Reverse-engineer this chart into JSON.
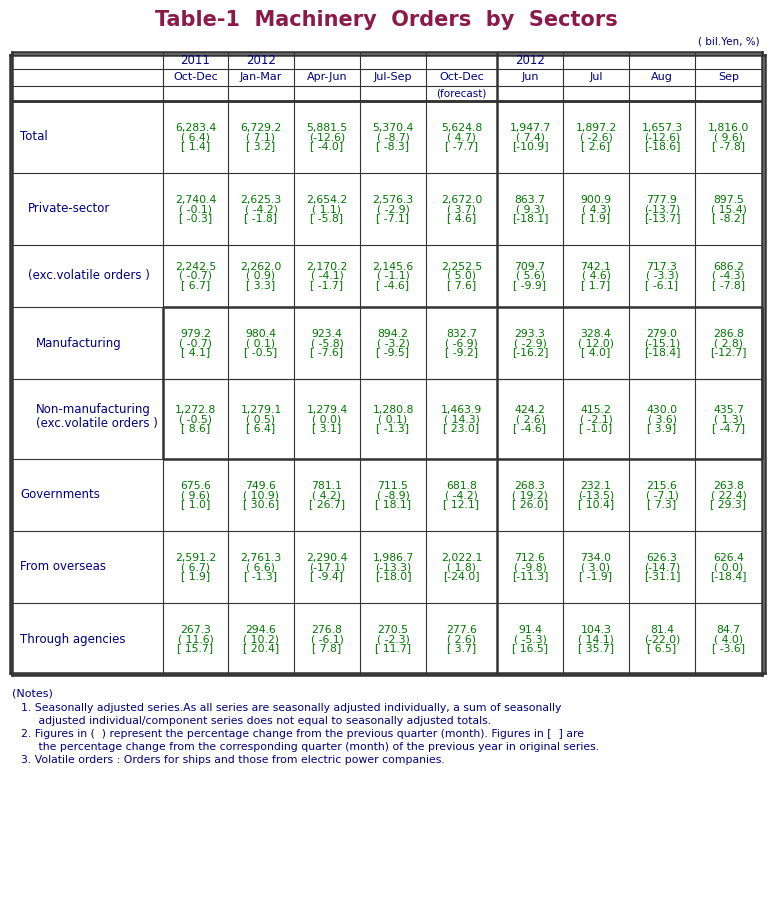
{
  "title": "Table-1  Machinery  Orders  by  Sectors",
  "title_color": "#8B1A4A",
  "unit_label": "( bil.Yen, %)",
  "header_color": "#000080",
  "label_color": "#000080",
  "data_color": "#007700",
  "notes_color": "#000080",
  "rows": [
    {
      "label": "Total",
      "indent": 0,
      "box": false,
      "data": [
        [
          "6,283.4",
          "( 6.4)",
          "[ 1.4]"
        ],
        [
          "6,729.2",
          "( 7.1)",
          "[ 3.2]"
        ],
        [
          "5,881.5",
          "(-12.6)",
          "[ -4.0]"
        ],
        [
          "5,370.4",
          "( -8.7)",
          "[ -8.3]"
        ],
        [
          "5,624.8",
          "( 4.7)",
          "[ -7.7]"
        ],
        [
          "1,947.7",
          "( 7.4)",
          "[-10.9]"
        ],
        [
          "1,897.2",
          "( -2.6)",
          "[ 2.6]"
        ],
        [
          "1,657.3",
          "(-12.6)",
          "[-18.6]"
        ],
        [
          "1,816.0",
          "( 9.6)",
          "[ -7.8]"
        ]
      ]
    },
    {
      "label": "Private-sector",
      "indent": 1,
      "box": false,
      "data": [
        [
          "2,740.4",
          "( -0.1)",
          "[ -0.3]"
        ],
        [
          "2,625.3",
          "( -4.2)",
          "[ -1.8]"
        ],
        [
          "2,654.2",
          "( 1.1)",
          "[ -5.8]"
        ],
        [
          "2,576.3",
          "( -2.9)",
          "[ -7.1]"
        ],
        [
          "2,672.0",
          "( 3.7)",
          "[ 4.6]"
        ],
        [
          "863.7",
          "( 9.3)",
          "[-18.1]"
        ],
        [
          "900.9",
          "( 4.3)",
          "[ 1.9]"
        ],
        [
          "777.9",
          "(-13.7)",
          "[-13.7]"
        ],
        [
          "897.5",
          "( 15.4)",
          "[ -8.2]"
        ]
      ]
    },
    {
      "label": "(exc.volatile orders )",
      "indent": 1,
      "box": false,
      "data": [
        [
          "2,242.5",
          "( -0.7)",
          "[ 6.7]"
        ],
        [
          "2,262.0",
          "( 0.9)",
          "[ 3.3]"
        ],
        [
          "2,170.2",
          "( -4.1)",
          "[ -1.7]"
        ],
        [
          "2,145.6",
          "( -1.1)",
          "[ -4.6]"
        ],
        [
          "2,252.5",
          "( 5.0)",
          "[ 7.6]"
        ],
        [
          "709.7",
          "( 5.6)",
          "[ -9.9]"
        ],
        [
          "742.1",
          "( 4.6)",
          "[ 1.7]"
        ],
        [
          "717.3",
          "( -3.3)",
          "[ -6.1]"
        ],
        [
          "686.2",
          "( -4.3)",
          "[ -7.8]"
        ]
      ]
    },
    {
      "label": "Manufacturing",
      "indent": 2,
      "box": true,
      "data": [
        [
          "979.2",
          "( -0.7)",
          "[ 4.1]"
        ],
        [
          "980.4",
          "( 0.1)",
          "[ -0.5]"
        ],
        [
          "923.4",
          "( -5.8)",
          "[ -7.6]"
        ],
        [
          "894.2",
          "( -3.2)",
          "[ -9.5]"
        ],
        [
          "832.7",
          "( -6.9)",
          "[ -9.2]"
        ],
        [
          "293.3",
          "( -2.9)",
          "[-16.2]"
        ],
        [
          "328.4",
          "( 12.0)",
          "[ 4.0]"
        ],
        [
          "279.0",
          "(-15.1)",
          "[-18.4]"
        ],
        [
          "286.8",
          "( 2.8)",
          "[-12.7]"
        ]
      ]
    },
    {
      "label": "Non-manufacturing\n(exc.volatile orders )",
      "indent": 2,
      "box": true,
      "data": [
        [
          "1,272.8",
          "( -0.5)",
          "[ 8.6]"
        ],
        [
          "1,279.1",
          "( 0.5)",
          "[ 6.4]"
        ],
        [
          "1,279.4",
          "( 0.0)",
          "[ 3.1]"
        ],
        [
          "1,280.8",
          "( 0.1)",
          "[ -1.3]"
        ],
        [
          "1,463.9",
          "( 14.3)",
          "[ 23.0]"
        ],
        [
          "424.2",
          "( 2.6)",
          "[ -4.6]"
        ],
        [
          "415.2",
          "( -2.1)",
          "[ -1.0]"
        ],
        [
          "430.0",
          "( 3.6)",
          "[ 3.9]"
        ],
        [
          "435.7",
          "( 1.3)",
          "[ -4.7]"
        ]
      ]
    },
    {
      "label": "Governments",
      "indent": 0,
      "box": false,
      "data": [
        [
          "675.6",
          "( 9.6)",
          "[ 1.0]"
        ],
        [
          "749.6",
          "( 10.9)",
          "[ 30.6]"
        ],
        [
          "781.1",
          "( 4.2)",
          "[ 26.7]"
        ],
        [
          "711.5",
          "( -8.9)",
          "[ 18.1]"
        ],
        [
          "681.8",
          "( -4.2)",
          "[ 12.1]"
        ],
        [
          "268.3",
          "( 19.2)",
          "[ 26.0]"
        ],
        [
          "232.1",
          "(-13.5)",
          "[ 10.4]"
        ],
        [
          "215.6",
          "( -7.1)",
          "[ 7.3]"
        ],
        [
          "263.8",
          "( 22.4)",
          "[ 29.3]"
        ]
      ]
    },
    {
      "label": "From overseas",
      "indent": 0,
      "box": false,
      "data": [
        [
          "2,591.2",
          "( 6.7)",
          "[ 1.9]"
        ],
        [
          "2,761.3",
          "( 6.6)",
          "[ -1.3]"
        ],
        [
          "2,290.4",
          "(-17.1)",
          "[ -9.4]"
        ],
        [
          "1,986.7",
          "(-13.3)",
          "[-18.0]"
        ],
        [
          "2,022.1",
          "( 1.8)",
          "[-24.0]"
        ],
        [
          "712.6",
          "( -9.8)",
          "[-11.3]"
        ],
        [
          "734.0",
          "( 3.0)",
          "[ -1.9]"
        ],
        [
          "626.3",
          "(-14.7)",
          "[-31.1]"
        ],
        [
          "626.4",
          "( 0.0)",
          "[-18.4]"
        ]
      ]
    },
    {
      "label": "Through agencies",
      "indent": 0,
      "box": false,
      "data": [
        [
          "267.3",
          "( 11.6)",
          "[ 15.7]"
        ],
        [
          "294.6",
          "( 10.2)",
          "[ 20.4]"
        ],
        [
          "276.8",
          "( -6.1)",
          "[ 7.8]"
        ],
        [
          "270.5",
          "( -2.3)",
          "[ 11.7]"
        ],
        [
          "277.6",
          "( 2.6)",
          "[ 3.7]"
        ],
        [
          "91.4",
          "( -5.3)",
          "[ 16.5]"
        ],
        [
          "104.3",
          "( 14.1)",
          "[ 35.7]"
        ],
        [
          "81.4",
          "(-22.0)",
          "[ 6.5]"
        ],
        [
          "84.7",
          "( 4.0)",
          "[ -3.6]"
        ]
      ]
    }
  ],
  "notes": [
    "(Notes)",
    "  1. Seasonally adjusted series.As all series are seasonally adjusted individually, a sum of seasonally",
    "       adjusted individual/component series does not equal to seasonally adjusted totals.",
    "  2. Figures in (  ) represent the percentage change from the previous quarter (month). Figures in [  ] are",
    "       the percentage change from the corresponding quarter (month) of the previous year in original series.",
    "  3. Volatile orders : Orders for ships and those from electric power companies."
  ]
}
